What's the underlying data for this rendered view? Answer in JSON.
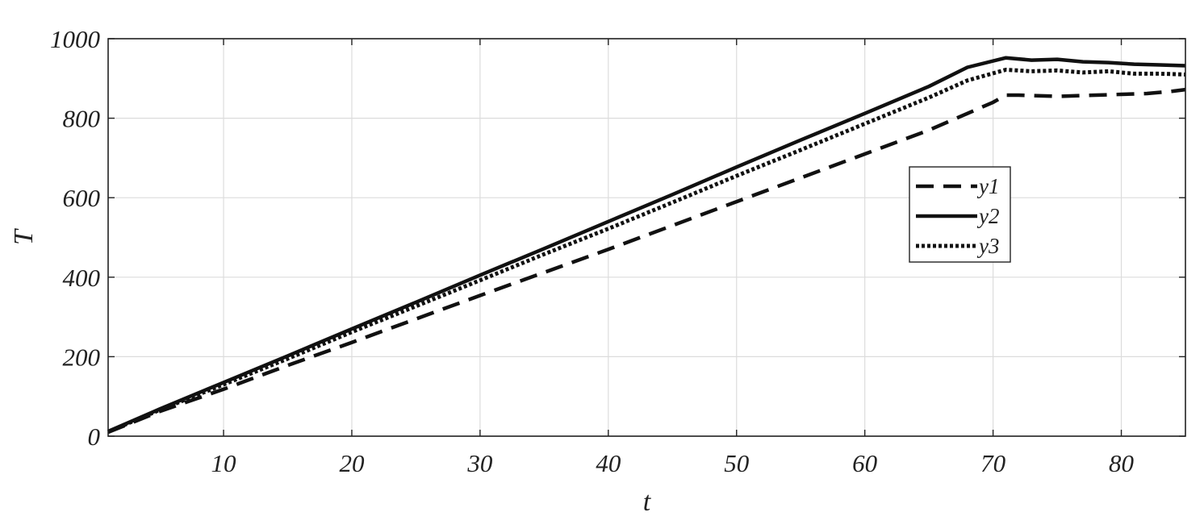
{
  "chart_data": {
    "type": "line",
    "title": "",
    "xlabel": "t",
    "ylabel": "T",
    "xlim": [
      1,
      85
    ],
    "ylim": [
      0,
      1000
    ],
    "xticks": [
      10,
      20,
      30,
      40,
      50,
      60,
      70,
      80
    ],
    "yticks": [
      0,
      200,
      400,
      600,
      800,
      1000
    ],
    "grid": true,
    "legend": "right",
    "series": [
      {
        "name": "y1",
        "style": "dashed",
        "color": "#111111",
        "points": [
          [
            1,
            10
          ],
          [
            5,
            62
          ],
          [
            10,
            118
          ],
          [
            15,
            178
          ],
          [
            20,
            236
          ],
          [
            25,
            295
          ],
          [
            30,
            354
          ],
          [
            35,
            412
          ],
          [
            40,
            470
          ],
          [
            45,
            530
          ],
          [
            50,
            590
          ],
          [
            55,
            650
          ],
          [
            60,
            710
          ],
          [
            65,
            770
          ],
          [
            70,
            840
          ],
          [
            71,
            858
          ],
          [
            72,
            858
          ],
          [
            75,
            855
          ],
          [
            78,
            858
          ],
          [
            80,
            860
          ],
          [
            82,
            862
          ],
          [
            84,
            868
          ],
          [
            85,
            872
          ]
        ]
      },
      {
        "name": "y2",
        "style": "solid",
        "color": "#111111",
        "points": [
          [
            1,
            12
          ],
          [
            5,
            68
          ],
          [
            10,
            135
          ],
          [
            15,
            202
          ],
          [
            20,
            270
          ],
          [
            25,
            337
          ],
          [
            30,
            405
          ],
          [
            35,
            472
          ],
          [
            40,
            540
          ],
          [
            45,
            608
          ],
          [
            50,
            677
          ],
          [
            55,
            745
          ],
          [
            60,
            812
          ],
          [
            65,
            880
          ],
          [
            68,
            928
          ],
          [
            71,
            952
          ],
          [
            73,
            946
          ],
          [
            75,
            948
          ],
          [
            77,
            942
          ],
          [
            79,
            940
          ],
          [
            81,
            936
          ],
          [
            83,
            934
          ],
          [
            85,
            932
          ]
        ]
      },
      {
        "name": "y3",
        "style": "dotted",
        "color": "#111111",
        "points": [
          [
            1,
            11
          ],
          [
            5,
            66
          ],
          [
            10,
            130
          ],
          [
            15,
            195
          ],
          [
            20,
            262
          ],
          [
            25,
            327
          ],
          [
            30,
            392
          ],
          [
            35,
            458
          ],
          [
            40,
            522
          ],
          [
            45,
            588
          ],
          [
            50,
            655
          ],
          [
            55,
            720
          ],
          [
            60,
            786
          ],
          [
            65,
            852
          ],
          [
            68,
            895
          ],
          [
            71,
            922
          ],
          [
            73,
            918
          ],
          [
            75,
            920
          ],
          [
            77,
            915
          ],
          [
            79,
            918
          ],
          [
            81,
            912
          ],
          [
            83,
            912
          ],
          [
            85,
            910
          ]
        ]
      }
    ]
  }
}
